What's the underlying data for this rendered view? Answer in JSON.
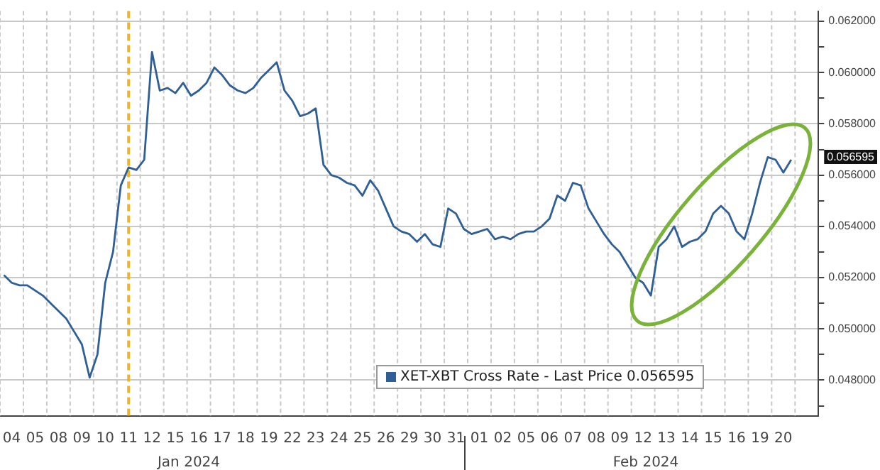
{
  "chart_data": {
    "type": "line",
    "categories": [
      null,
      "04",
      null,
      null,
      "05",
      null,
      null,
      "08",
      null,
      null,
      "09",
      null,
      null,
      "10",
      null,
      null,
      "11",
      null,
      null,
      "12",
      null,
      null,
      "15",
      null,
      null,
      "16",
      null,
      null,
      "17",
      null,
      null,
      "18",
      null,
      null,
      "19",
      null,
      null,
      "22",
      null,
      null,
      "23",
      null,
      null,
      "24",
      null,
      null,
      "25",
      null,
      null,
      "26",
      null,
      null,
      "29",
      null,
      null,
      "30",
      null,
      null,
      "31",
      null,
      null,
      "01",
      null,
      null,
      "02",
      null,
      null,
      "05",
      null,
      null,
      "06",
      null,
      null,
      "07",
      null,
      null,
      "08",
      null,
      null,
      "09",
      null,
      null,
      "12",
      null,
      null,
      "13",
      null,
      null,
      "14",
      null,
      null,
      "15",
      null,
      null,
      "16",
      null,
      null,
      "19",
      null,
      null,
      "20",
      null,
      null,
      null,
      null
    ],
    "series": [
      {
        "name": "XET-XBT Cross Rate - Last Price 0.056595",
        "color": "#2f5f94",
        "values": [
          0.0521,
          0.0518,
          0.0517,
          0.0517,
          0.0515,
          0.0513,
          0.051,
          0.0507,
          0.0504,
          0.0499,
          0.0494,
          0.0481,
          0.049,
          0.0518,
          0.053,
          0.0556,
          0.0563,
          0.0562,
          0.0566,
          0.0608,
          0.0593,
          0.0594,
          0.0592,
          0.0596,
          0.0591,
          0.0593,
          0.0596,
          0.0602,
          0.0599,
          0.0595,
          0.0593,
          0.0592,
          0.0594,
          0.0598,
          0.0601,
          0.0604,
          0.0593,
          0.0589,
          0.0583,
          0.0584,
          0.0586,
          0.0564,
          0.056,
          0.0559,
          0.0557,
          0.0556,
          0.0552,
          0.0558,
          0.0554,
          0.0547,
          0.054,
          0.0538,
          0.0537,
          0.0534,
          0.0537,
          0.0533,
          0.0532,
          0.0547,
          0.0545,
          0.0539,
          0.0537,
          0.0538,
          0.0539,
          0.0535,
          0.0536,
          0.0535,
          0.0537,
          0.0538,
          0.0538,
          0.054,
          0.0543,
          0.0552,
          0.055,
          0.0557,
          0.0556,
          0.0547,
          0.0542,
          0.0537,
          0.0533,
          0.053,
          0.0525,
          0.052,
          0.0518,
          0.0513,
          0.0532,
          0.0535,
          0.054,
          0.0532,
          0.0534,
          0.0535,
          0.0538,
          0.0545,
          0.0548,
          0.0545,
          0.0538,
          0.0535,
          0.0545,
          0.0557,
          0.0567,
          0.0566,
          0.0561,
          0.0566,
          null,
          null,
          null
        ]
      }
    ],
    "ylim": [
      0.0466,
      0.0624
    ],
    "yticks": [
      {
        "value": 0.047,
        "label": null
      },
      {
        "value": 0.048,
        "label": "0.048000"
      },
      {
        "value": 0.049,
        "label": null
      },
      {
        "value": 0.05,
        "label": "0.050000"
      },
      {
        "value": 0.051,
        "label": null
      },
      {
        "value": 0.052,
        "label": "0.052000"
      },
      {
        "value": 0.053,
        "label": null
      },
      {
        "value": 0.054,
        "label": "0.054000"
      },
      {
        "value": 0.055,
        "label": null
      },
      {
        "value": 0.056,
        "label": "0.056000"
      },
      {
        "value": 0.057,
        "label": null
      },
      {
        "value": 0.058,
        "label": "0.058000"
      },
      {
        "value": 0.059,
        "label": null
      },
      {
        "value": 0.06,
        "label": "0.060000"
      },
      {
        "value": 0.061,
        "label": null
      },
      {
        "value": 0.062,
        "label": "0.062000"
      }
    ],
    "ref_lines": [
      {
        "axis": "x",
        "value": "11",
        "color": "#f0b429",
        "line_style": "dashed"
      }
    ],
    "annotations": [
      "Jan 2024",
      "Feb 2024",
      "0.056595"
    ],
    "grid": true,
    "legend": "bottom",
    "marker": "none",
    "line_style": "solid"
  }
}
